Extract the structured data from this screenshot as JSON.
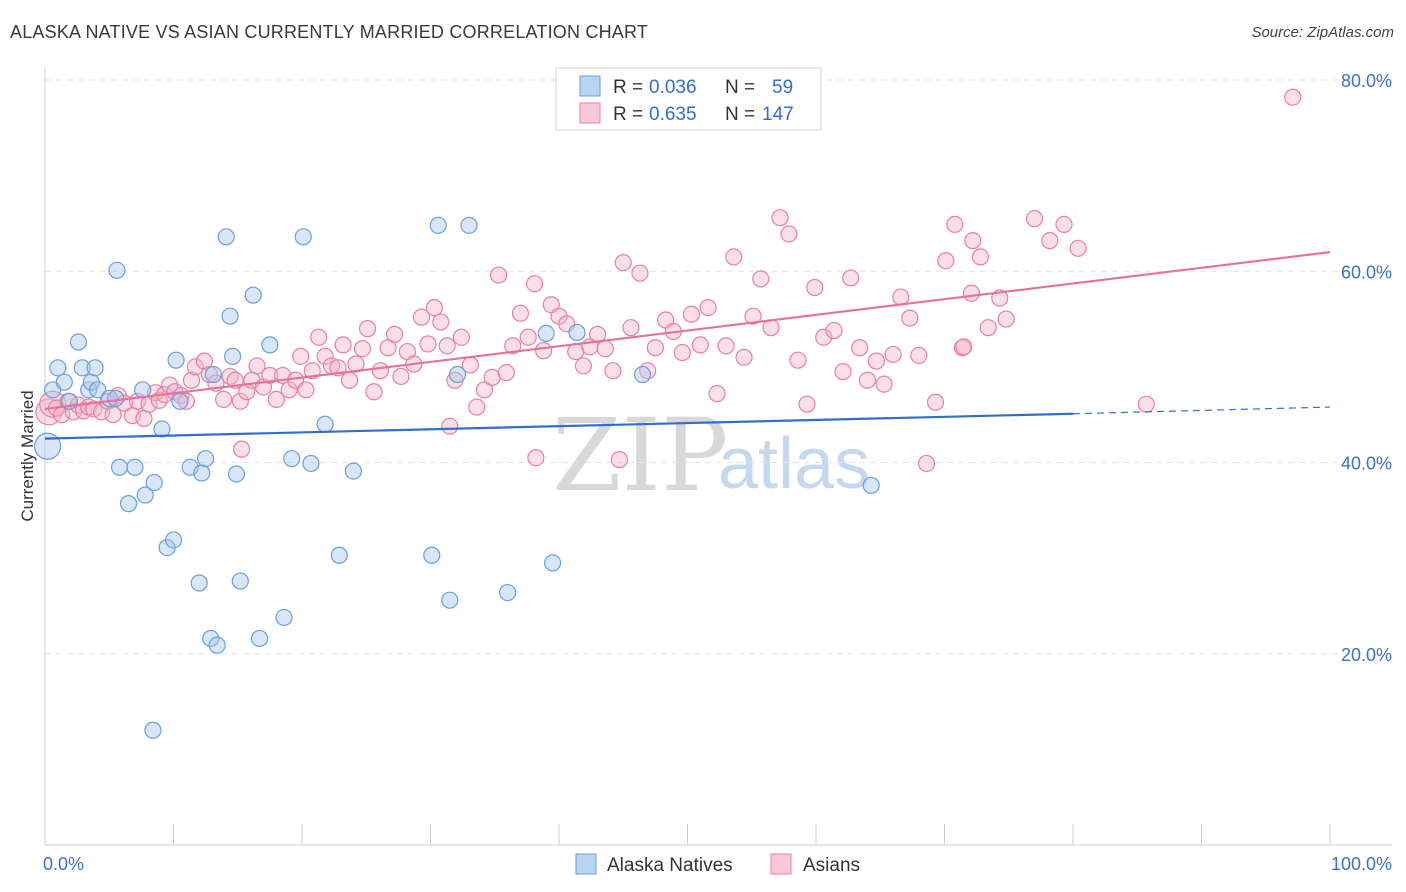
{
  "header": {
    "title": "ALASKA NATIVE VS ASIAN CURRENTLY MARRIED CORRELATION CHART",
    "source": "Source: ZipAtlas.com"
  },
  "legend": {
    "rows": [
      {
        "series": "Alaska Natives",
        "r_label": "R =",
        "r_value": "0.036",
        "n_label": "N =",
        "n_value": "59",
        "color": "#6a9fe0"
      },
      {
        "series": "Asians",
        "r_label": "R =",
        "r_value": "0.635",
        "n_label": "N =",
        "n_value": "147",
        "color": "#ec7fa3"
      }
    ]
  },
  "watermark": {
    "zip": "ZIP",
    "atlas": "atlas"
  },
  "colors": {
    "blue_fill": "#a9c8ef",
    "blue_stroke": "#6a9fe0",
    "blue_line": "#2f6fcc",
    "pink_fill": "#f5b6cb",
    "pink_stroke": "#ec7fa3",
    "pink_line": "#e8709a",
    "axis_tick": "#3c72c4",
    "grid": "#e3e3e3"
  },
  "chart_data": {
    "type": "scatter",
    "title": "ALASKA NATIVE VS ASIAN CURRENTLY MARRIED CORRELATION CHART",
    "xlabel": "",
    "ylabel": "Currently Married",
    "xlim": [
      0,
      100
    ],
    "ylim": [
      0,
      80
    ],
    "x_tick_labels": [
      "0.0%",
      "100.0%"
    ],
    "y_ticks": [
      20,
      40,
      60,
      80
    ],
    "y_tick_labels": [
      "20.0%",
      "40.0%",
      "60.0%",
      "80.0%"
    ],
    "legend_position": "bottom-center",
    "series": [
      {
        "name": "Alaska Natives",
        "R": 0.036,
        "N": 59,
        "trend": {
          "x0": 0,
          "y0": 42.5,
          "x1": 80,
          "y1": 45.1,
          "dashed_to": 100,
          "dashed_y": 45.8
        },
        "points": [
          [
            0.2,
            41.7,
            "L"
          ],
          [
            0.6,
            47.6
          ],
          [
            1.0,
            49.9
          ],
          [
            1.5,
            48.4
          ],
          [
            1.9,
            46.4
          ],
          [
            2.6,
            52.6
          ],
          [
            2.9,
            49.9
          ],
          [
            3.4,
            47.6
          ],
          [
            3.6,
            48.4
          ],
          [
            3.9,
            49.9
          ],
          [
            4.1,
            47.6
          ],
          [
            5.0,
            46.7
          ],
          [
            5.5,
            46.7
          ],
          [
            5.6,
            60.1
          ],
          [
            5.8,
            39.5
          ],
          [
            6.5,
            35.7
          ],
          [
            7.0,
            39.5
          ],
          [
            7.8,
            36.6
          ],
          [
            7.6,
            47.6
          ],
          [
            8.5,
            37.9
          ],
          [
            9.1,
            43.5
          ],
          [
            9.5,
            31.1
          ],
          [
            10.0,
            31.9
          ],
          [
            10.2,
            50.7
          ],
          [
            10.5,
            46.4
          ],
          [
            11.3,
            39.5
          ],
          [
            12.0,
            27.4
          ],
          [
            12.2,
            38.9
          ],
          [
            12.5,
            40.4
          ],
          [
            12.9,
            21.6
          ],
          [
            13.1,
            49.2
          ],
          [
            13.4,
            20.9
          ],
          [
            14.1,
            63.6
          ],
          [
            14.4,
            55.3
          ],
          [
            14.6,
            51.1
          ],
          [
            14.9,
            38.8
          ],
          [
            15.2,
            27.6
          ],
          [
            16.2,
            57.5
          ],
          [
            16.7,
            21.6
          ],
          [
            17.5,
            52.3
          ],
          [
            18.6,
            23.8
          ],
          [
            19.2,
            40.4
          ],
          [
            20.1,
            63.6
          ],
          [
            20.7,
            39.9
          ],
          [
            21.8,
            44.0
          ],
          [
            22.9,
            30.3
          ],
          [
            24.0,
            39.1
          ],
          [
            30.1,
            30.3
          ],
          [
            30.6,
            64.8
          ],
          [
            31.5,
            25.6
          ],
          [
            32.1,
            49.2
          ],
          [
            33.0,
            64.8
          ],
          [
            36.0,
            26.4
          ],
          [
            39.0,
            53.5
          ],
          [
            39.5,
            29.5
          ],
          [
            41.4,
            53.6
          ],
          [
            46.5,
            49.2
          ],
          [
            64.3,
            37.6
          ],
          [
            8.4,
            12.0
          ]
        ]
      },
      {
        "name": "Asians",
        "R": 0.635,
        "N": 147,
        "trend": {
          "x0": 0,
          "y0": 45.6,
          "x1": 100,
          "y1": 62.0
        },
        "points": [
          [
            0.3,
            45.3,
            "L"
          ],
          [
            0.6,
            46.1,
            "L"
          ],
          [
            0.9,
            45.7
          ],
          [
            1.3,
            45.0
          ],
          [
            1.8,
            46.4
          ],
          [
            2.2,
            45.3
          ],
          [
            2.6,
            46.0
          ],
          [
            3.0,
            45.4
          ],
          [
            3.4,
            45.8
          ],
          [
            3.8,
            45.6
          ],
          [
            4.4,
            45.3
          ],
          [
            4.9,
            46.4
          ],
          [
            5.3,
            45.0
          ],
          [
            5.7,
            47.0
          ],
          [
            6.2,
            46.2
          ],
          [
            6.8,
            44.9
          ],
          [
            7.2,
            46.4
          ],
          [
            7.7,
            44.6
          ],
          [
            8.1,
            46.1
          ],
          [
            8.6,
            47.3
          ],
          [
            8.9,
            46.5
          ],
          [
            9.3,
            47.1
          ],
          [
            9.7,
            48.1
          ],
          [
            10.1,
            47.4
          ],
          [
            10.6,
            47.0
          ],
          [
            11.0,
            46.4
          ],
          [
            11.4,
            48.6
          ],
          [
            11.7,
            50.0
          ],
          [
            12.4,
            50.6
          ],
          [
            12.8,
            49.2
          ],
          [
            13.3,
            48.3
          ],
          [
            13.9,
            46.6
          ],
          [
            14.4,
            49.0
          ],
          [
            14.8,
            48.6
          ],
          [
            15.2,
            46.4
          ],
          [
            15.7,
            47.4
          ],
          [
            16.1,
            48.6
          ],
          [
            16.5,
            50.1
          ],
          [
            17.0,
            47.9
          ],
          [
            17.5,
            49.1
          ],
          [
            18.0,
            46.6
          ],
          [
            18.5,
            49.1
          ],
          [
            19.0,
            47.6
          ],
          [
            19.5,
            48.6
          ],
          [
            19.9,
            51.1
          ],
          [
            20.3,
            47.6
          ],
          [
            20.8,
            49.6
          ],
          [
            21.3,
            53.1
          ],
          [
            21.8,
            51.1
          ],
          [
            22.3,
            50.1
          ],
          [
            22.8,
            49.9
          ],
          [
            23.2,
            52.3
          ],
          [
            23.7,
            48.6
          ],
          [
            24.2,
            50.3
          ],
          [
            24.7,
            51.9
          ],
          [
            25.1,
            54.0
          ],
          [
            25.6,
            47.4
          ],
          [
            26.1,
            49.6
          ],
          [
            26.7,
            52.0
          ],
          [
            27.2,
            53.4
          ],
          [
            27.7,
            49.0
          ],
          [
            28.2,
            51.6
          ],
          [
            28.7,
            50.3
          ],
          [
            29.3,
            55.2
          ],
          [
            29.8,
            52.4
          ],
          [
            30.3,
            56.2
          ],
          [
            30.8,
            54.7
          ],
          [
            31.3,
            52.2
          ],
          [
            31.9,
            48.6
          ],
          [
            32.4,
            53.1
          ],
          [
            33.1,
            50.2
          ],
          [
            33.6,
            45.8
          ],
          [
            34.2,
            47.6
          ],
          [
            34.8,
            48.9
          ],
          [
            35.3,
            59.6
          ],
          [
            35.9,
            49.4
          ],
          [
            36.4,
            52.2
          ],
          [
            37.0,
            55.6
          ],
          [
            37.6,
            53.1
          ],
          [
            38.1,
            58.7
          ],
          [
            38.8,
            51.7
          ],
          [
            39.4,
            56.5
          ],
          [
            40.0,
            55.3
          ],
          [
            40.6,
            54.5
          ],
          [
            41.3,
            51.6
          ],
          [
            41.9,
            50.1
          ],
          [
            42.4,
            52.1
          ],
          [
            43.0,
            53.4
          ],
          [
            43.6,
            51.9
          ],
          [
            44.2,
            49.6
          ],
          [
            45.0,
            60.9
          ],
          [
            45.6,
            54.1
          ],
          [
            46.3,
            59.8
          ],
          [
            46.9,
            49.6
          ],
          [
            47.5,
            52.0
          ],
          [
            48.3,
            54.9
          ],
          [
            48.9,
            53.7
          ],
          [
            49.6,
            51.5
          ],
          [
            50.3,
            55.5
          ],
          [
            51.0,
            52.3
          ],
          [
            51.6,
            56.2
          ],
          [
            52.3,
            47.2
          ],
          [
            53.0,
            52.2
          ],
          [
            53.6,
            61.5
          ],
          [
            54.4,
            51.0
          ],
          [
            55.1,
            55.3
          ],
          [
            55.7,
            59.2
          ],
          [
            56.5,
            54.1
          ],
          [
            57.2,
            65.6
          ],
          [
            57.9,
            63.9
          ],
          [
            58.6,
            50.7
          ],
          [
            59.3,
            46.1
          ],
          [
            59.9,
            58.3
          ],
          [
            60.6,
            53.1
          ],
          [
            61.4,
            53.8
          ],
          [
            62.1,
            49.5
          ],
          [
            62.7,
            59.3
          ],
          [
            63.4,
            52.0
          ],
          [
            64.0,
            48.6
          ],
          [
            64.7,
            50.6
          ],
          [
            65.3,
            48.2
          ],
          [
            66.0,
            51.3
          ],
          [
            66.6,
            57.3
          ],
          [
            67.3,
            55.1
          ],
          [
            68.0,
            51.2
          ],
          [
            68.6,
            39.9
          ],
          [
            69.3,
            46.3
          ],
          [
            70.1,
            61.1
          ],
          [
            70.8,
            64.9
          ],
          [
            71.4,
            52.0
          ],
          [
            72.1,
            57.7
          ],
          [
            72.8,
            61.5
          ],
          [
            73.4,
            54.1
          ],
          [
            74.8,
            55.0
          ],
          [
            71.5,
            52.1
          ],
          [
            72.2,
            63.2
          ],
          [
            74.3,
            57.2
          ],
          [
            77.0,
            65.5
          ],
          [
            78.2,
            63.2
          ],
          [
            79.3,
            64.9
          ],
          [
            80.4,
            62.4
          ],
          [
            85.7,
            46.1
          ],
          [
            97.1,
            78.2
          ],
          [
            15.3,
            41.4
          ],
          [
            31.5,
            43.8
          ],
          [
            38.2,
            40.5
          ],
          [
            44.7,
            40.3
          ]
        ]
      }
    ]
  }
}
